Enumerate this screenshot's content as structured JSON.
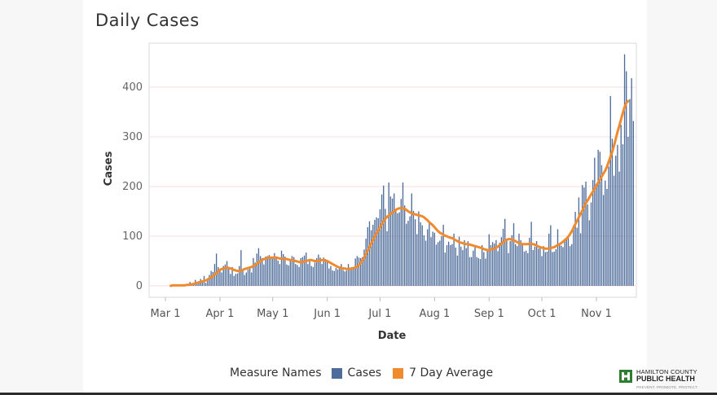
{
  "title": "Daily Cases",
  "legend": {
    "title": "Measure Names",
    "items": [
      {
        "label": "Cases",
        "color": "#4e6c9a"
      },
      {
        "label": "7 Day Average",
        "color": "#f08a2e"
      }
    ]
  },
  "logo": {
    "line1": "HAMILTON COUNTY",
    "line2": "PUBLIC HEALTH",
    "tagline": "PREVENT. PROMOTE. PROTECT.",
    "icon": "hamilton-county-h-icon",
    "color": "#2e7d32"
  },
  "chart_data": {
    "type": "bar",
    "title": "Daily Cases",
    "xlabel": "Date",
    "ylabel": "Cases",
    "ylim": [
      0,
      480
    ],
    "yticks": [
      "0",
      "100",
      "200",
      "300",
      "400"
    ],
    "xticks": [
      {
        "label": "Mar 1",
        "date": "2020-03-01"
      },
      {
        "label": "Apr 1",
        "date": "2020-04-01"
      },
      {
        "label": "May 1",
        "date": "2020-05-01"
      },
      {
        "label": "Jun 1",
        "date": "2020-06-01"
      },
      {
        "label": "Jul 1",
        "date": "2020-07-01"
      },
      {
        "label": "Aug 1",
        "date": "2020-08-01"
      },
      {
        "label": "Sep 1",
        "date": "2020-09-01"
      },
      {
        "label": "Oct 1",
        "date": "2020-10-01"
      },
      {
        "label": "Nov 1",
        "date": "2020-11-01"
      }
    ],
    "grid": true,
    "legend_position": "bottom",
    "series": [
      {
        "name": "Cases",
        "type": "bar",
        "color": "#4e6c9a",
        "start_date": "2020-03-04",
        "values": [
          0,
          1,
          0,
          1,
          0,
          2,
          1,
          3,
          0,
          4,
          2,
          8,
          3,
          6,
          12,
          6,
          9,
          14,
          10,
          20,
          6,
          15,
          22,
          30,
          28,
          44,
          65,
          38,
          30,
          27,
          40,
          43,
          50,
          35,
          24,
          38,
          20,
          24,
          25,
          40,
          72,
          30,
          22,
          27,
          33,
          38,
          27,
          56,
          47,
          65,
          76,
          60,
          56,
          43,
          59,
          60,
          62,
          58,
          58,
          66,
          55,
          51,
          44,
          71,
          64,
          59,
          43,
          41,
          51,
          60,
          58,
          44,
          42,
          38,
          56,
          58,
          61,
          67,
          44,
          53,
          40,
          38,
          47,
          56,
          63,
          57,
          44,
          57,
          54,
          49,
          35,
          40,
          31,
          30,
          36,
          33,
          39,
          44,
          32,
          29,
          31,
          44,
          37,
          38,
          34,
          55,
          60,
          57,
          56,
          58,
          73,
          95,
          118,
          130,
          112,
          123,
          133,
          138,
          136,
          154,
          184,
          202,
          155,
          110,
          208,
          180,
          176,
          186,
          150,
          146,
          148,
          175,
          208,
          162,
          125,
          131,
          140,
          186,
          151,
          134,
          104,
          150,
          128,
          122,
          102,
          91,
          114,
          129,
          98,
          109,
          107,
          83,
          88,
          91,
          100,
          123,
          67,
          82,
          89,
          82,
          84,
          105,
          77,
          61,
          99,
          79,
          72,
          92,
          76,
          90,
          58,
          58,
          71,
          81,
          58,
          56,
          54,
          82,
          68,
          55,
          70,
          104,
          82,
          88,
          85,
          92,
          70,
          87,
          98,
          115,
          135,
          93,
          66,
          90,
          102,
          126,
          84,
          80,
          105,
          92,
          86,
          69,
          71,
          66,
          97,
          129,
          72,
          79,
          90,
          75,
          76,
          60,
          80,
          68,
          69,
          105,
          122,
          68,
          69,
          74,
          114,
          85,
          81,
          78,
          95,
          93,
          99,
          80,
          84,
          122,
          149,
          117,
          178,
          106,
          203,
          198,
          210,
          164,
          132,
          168,
          213,
          258,
          200,
          274,
          270,
          243,
          183,
          212,
          195,
          240,
          382,
          296,
          222,
          262,
          284,
          230,
          324,
          285,
          466,
          432,
          300,
          376,
          418,
          332
        ]
      },
      {
        "name": "7 Day Average",
        "type": "line",
        "color": "#f08a2e",
        "start_date": "2020-03-04",
        "values": [
          0,
          1,
          1,
          1,
          1,
          1,
          1,
          1,
          1,
          2,
          2,
          3,
          3,
          4,
          5,
          6,
          7,
          8,
          9,
          10,
          11,
          13,
          15,
          17,
          20,
          23,
          26,
          29,
          32,
          34,
          35,
          36,
          37,
          36,
          35,
          34,
          32,
          31,
          30,
          30,
          31,
          32,
          34,
          35,
          36,
          37,
          38,
          40,
          42,
          44,
          47,
          50,
          52,
          54,
          55,
          56,
          57,
          57,
          57,
          57,
          57,
          56,
          55,
          55,
          54,
          54,
          54,
          53,
          52,
          52,
          51,
          50,
          49,
          48,
          48,
          48,
          49,
          50,
          51,
          52,
          52,
          51,
          50,
          50,
          50,
          51,
          52,
          52,
          51,
          50,
          48,
          46,
          44,
          42,
          40,
          38,
          37,
          36,
          35,
          35,
          34,
          34,
          34,
          35,
          36,
          37,
          39,
          42,
          46,
          51,
          57,
          64,
          71,
          78,
          85,
          92,
          99,
          106,
          112,
          118,
          124,
          130,
          135,
          139,
          142,
          145,
          148,
          150,
          153,
          155,
          156,
          157,
          156,
          155,
          153,
          150,
          148,
          146,
          145,
          144,
          143,
          142,
          141,
          140,
          138,
          135,
          132,
          128,
          125,
          122,
          118,
          114,
          110,
          107,
          105,
          103,
          101,
          100,
          98,
          97,
          96,
          94,
          92,
          90,
          88,
          87,
          86,
          85,
          84,
          84,
          83,
          82,
          81,
          80,
          79,
          78,
          77,
          76,
          74,
          73,
          72,
          72,
          73,
          74,
          75,
          77,
          79,
          82,
          85,
          88,
          91,
          93,
          94,
          94,
          93,
          92,
          90,
          88,
          86,
          85,
          84,
          84,
          84,
          84,
          85,
          85,
          84,
          83,
          81,
          79,
          78,
          77,
          76,
          75,
          75,
          75,
          76,
          77,
          78,
          80,
          82,
          84,
          86,
          89,
          92,
          95,
          99,
          104,
          110,
          117,
          124,
          131,
          138,
          145,
          152,
          159,
          166,
          172,
          178,
          184,
          190,
          196,
          202,
          208,
          214,
          220,
          226,
          232,
          240,
          250,
          260,
          270,
          282,
          296,
          310,
          322,
          335,
          348,
          360,
          368,
          372
        ]
      }
    ]
  }
}
